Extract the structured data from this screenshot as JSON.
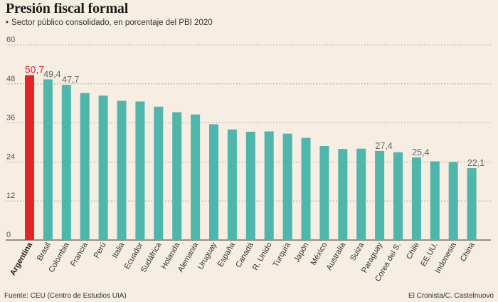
{
  "header": {
    "title": "Presión fiscal formal",
    "bullet": "•",
    "subtitle": "Sector público consolidado, en porcentaje del PBI 2020"
  },
  "footer": {
    "source": "Fuente: CEU (Centro de Estudios UIA)",
    "credit": "El Cronista/C. Castelnuovo"
  },
  "colors": {
    "highlight": "#e52629",
    "bar": "#4fb6ab",
    "grid": "#8a8a8a",
    "label_highlight": "#e52629",
    "label_normal": "#666666"
  },
  "chart_data": {
    "type": "bar",
    "title": "Presión fiscal formal",
    "subtitle": "Sector público consolidado, en porcentaje del PBI 2020",
    "xlabel": "",
    "ylabel": "",
    "ylim": [
      0,
      60
    ],
    "yticks": [
      "0",
      "12",
      "24",
      "36",
      "48",
      "60"
    ],
    "ytick_values": [
      0,
      12,
      24,
      36,
      48,
      60
    ],
    "grid": true,
    "highlight_category": "Argentina",
    "categories": [
      "Argentina",
      "Brasil",
      "Colombia",
      "Francia",
      "Perú",
      "Italia",
      "Ecuador",
      "Sudáfrica",
      "Holanda",
      "Alemania",
      "Uruguay",
      "España",
      "Canadá",
      "R. Unido",
      "Turquía",
      "Japón",
      "México",
      "Australia",
      "Suiza",
      "Paraguay",
      "Corea del S.",
      "Chile",
      "EE.UU.",
      "Indonesia",
      "China"
    ],
    "values": [
      50.7,
      49.4,
      47.7,
      45.2,
      44.4,
      42.8,
      42.6,
      41.0,
      39.3,
      38.6,
      35.6,
      34.0,
      33.3,
      33.4,
      32.7,
      31.4,
      28.9,
      28.0,
      28.1,
      27.4,
      27.0,
      25.4,
      24.2,
      24.0,
      22.1
    ],
    "data_labels": [
      {
        "category": "Argentina",
        "text": "50,7"
      },
      {
        "category": "Brasil",
        "text": "49,4"
      },
      {
        "category": "Colombia",
        "text": "47,7"
      },
      {
        "category": "Paraguay",
        "text": "27,4"
      },
      {
        "category": "Chile",
        "text": "25,4"
      },
      {
        "category": "China",
        "text": "22,1"
      }
    ]
  }
}
